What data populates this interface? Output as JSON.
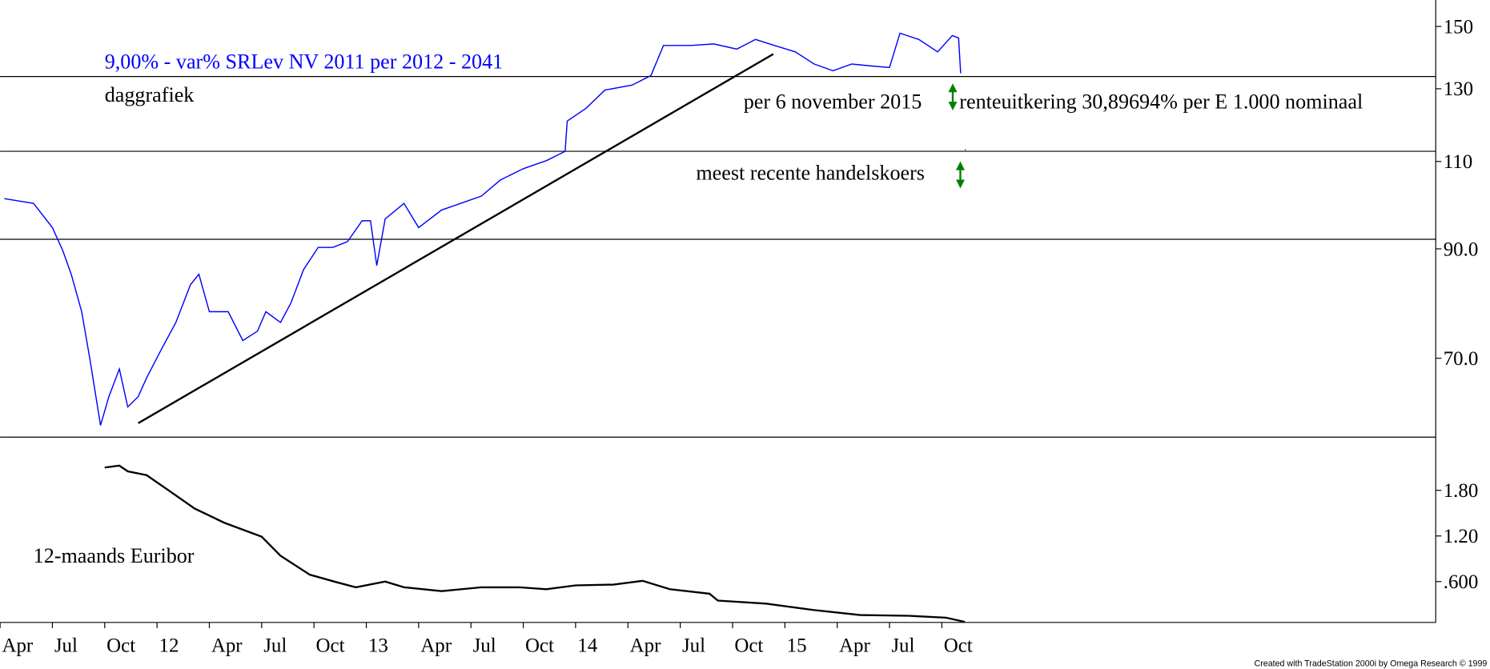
{
  "chart_data": [
    {
      "type": "line",
      "title": "9,00% - var% SRLev NV 2011 per 2012 - 2041",
      "subtitle": "daggrafiek",
      "annotations": [
        "per 6 november 2015",
        "renteuitkering 30,89694% per E 1.000 nominaal",
        "meest recente handelskoers"
      ],
      "color": "#0000ff",
      "yscale": "log",
      "x": [
        2011.27,
        2011.41,
        2011.5,
        2011.55,
        2011.59,
        2011.64,
        2011.68,
        2011.73,
        2011.77,
        2011.82,
        2011.86,
        2011.91,
        2011.95,
        2012.02,
        2012.09,
        2012.16,
        2012.2,
        2012.25,
        2012.34,
        2012.41,
        2012.48,
        2012.52,
        2012.59,
        2012.64,
        2012.7,
        2012.77,
        2012.84,
        2012.91,
        2012.98,
        2013.02,
        2013.05,
        2013.09,
        2013.18,
        2013.25,
        2013.36,
        2013.45,
        2013.55,
        2013.64,
        2013.75,
        2013.86,
        2013.95,
        2013.96,
        2014.05,
        2014.14,
        2014.27,
        2014.36,
        2014.42,
        2014.55,
        2014.66,
        2014.77,
        2014.86,
        2014.95,
        2015.05,
        2015.14,
        2015.23,
        2015.32,
        2015.41,
        2015.5,
        2015.55,
        2015.64,
        2015.73,
        2015.8,
        2015.83,
        2015.84,
        2015.85,
        2015.86
      ],
      "values": [
        101,
        99.9,
        94.5,
        89.6,
        84.9,
        77.9,
        69.7,
        60,
        64.1,
        68.3,
        62.6,
        64.1,
        66.9,
        71.4,
        76,
        82.9,
        84.9,
        77.9,
        77.9,
        72.9,
        74.5,
        77.9,
        76,
        79.5,
        85.8,
        90.3,
        90.3,
        91.5,
        96,
        96,
        86.6,
        96.4,
        99.9,
        94.5,
        98.4,
        99.9,
        101.6,
        105.4,
        108.2,
        110.2,
        112.6,
        120.7,
        124.3,
        129.6,
        131.1,
        134,
        143.6,
        143.6,
        144.1,
        142.4,
        145.6,
        143.6,
        141.5,
        137.6,
        135.5,
        137.6,
        137,
        136.5,
        147.7,
        145.6,
        141.5,
        146.9,
        146.1,
        134.7,
        null,
        113
      ],
      "hlines": [
        133.7,
        112.6,
        92
      ],
      "trendline": {
        "x": [
          2011.91,
          2014.945
        ],
        "values": [
          60.3,
          140.8
        ]
      },
      "xlim": [
        2011.25,
        2018.11
      ],
      "ylim": [
        58.4,
        159.4
      ],
      "yticks": [
        150,
        130,
        110,
        {
          "value": 90,
          "label": "90.0"
        },
        {
          "value": 70,
          "label": "70.0"
        }
      ]
    },
    {
      "type": "line",
      "title": "12-maands Euribor",
      "color": "#000000",
      "x": [
        2011.75,
        2011.82,
        2011.86,
        2011.95,
        2012.05,
        2012.18,
        2012.32,
        2012.5,
        2012.59,
        2012.73,
        2012.86,
        2012.95,
        2013.09,
        2013.18,
        2013.36,
        2013.55,
        2013.73,
        2013.86,
        2014.0,
        2014.18,
        2014.32,
        2014.45,
        2014.64,
        2014.68,
        2014.91,
        2015.14,
        2015.36,
        2015.59,
        2015.77,
        2015.86
      ],
      "values": [
        2.1,
        2.125,
        2.05,
        2.0,
        1.81,
        1.56,
        1.375,
        1.19,
        0.94,
        0.69,
        0.59,
        0.525,
        0.6,
        0.525,
        0.475,
        0.525,
        0.525,
        0.5,
        0.55,
        0.56,
        0.61,
        0.5,
        0.44,
        0.35,
        0.31,
        0.225,
        0.16,
        0.15,
        0.125,
        0.07
      ],
      "xlim": [
        2011.25,
        2018.11
      ],
      "ylim": [
        0.0625,
        2.5
      ],
      "yticks": [
        {
          "value": 1.8,
          "label": "1.80"
        },
        {
          "value": 1.2,
          "label": "1.20"
        },
        {
          "value": 0.6,
          "label": ".600"
        }
      ],
      "xticks": [
        {
          "value": 2011.25,
          "label": "Apr"
        },
        {
          "value": 2011.5,
          "label": "Jul"
        },
        {
          "value": 2011.75,
          "label": "Oct"
        },
        {
          "value": 2012,
          "label": "12"
        },
        {
          "value": 2012.25,
          "label": "Apr"
        },
        {
          "value": 2012.5,
          "label": "Jul"
        },
        {
          "value": 2012.75,
          "label": "Oct"
        },
        {
          "value": 2013,
          "label": "13"
        },
        {
          "value": 2013.25,
          "label": "Apr"
        },
        {
          "value": 2013.5,
          "label": "Jul"
        },
        {
          "value": 2013.75,
          "label": "Oct"
        },
        {
          "value": 2014,
          "label": "14"
        },
        {
          "value": 2014.25,
          "label": "Apr"
        },
        {
          "value": 2014.5,
          "label": "Jul"
        },
        {
          "value": 2014.75,
          "label": "Oct"
        },
        {
          "value": 2015,
          "label": "15"
        },
        {
          "value": 2015.25,
          "label": "Apr"
        },
        {
          "value": 2015.5,
          "label": "Jul"
        },
        {
          "value": 2015.75,
          "label": "Oct"
        }
      ]
    }
  ],
  "footer": "Created with TradeStation 2000i by Omega Research © 1999"
}
